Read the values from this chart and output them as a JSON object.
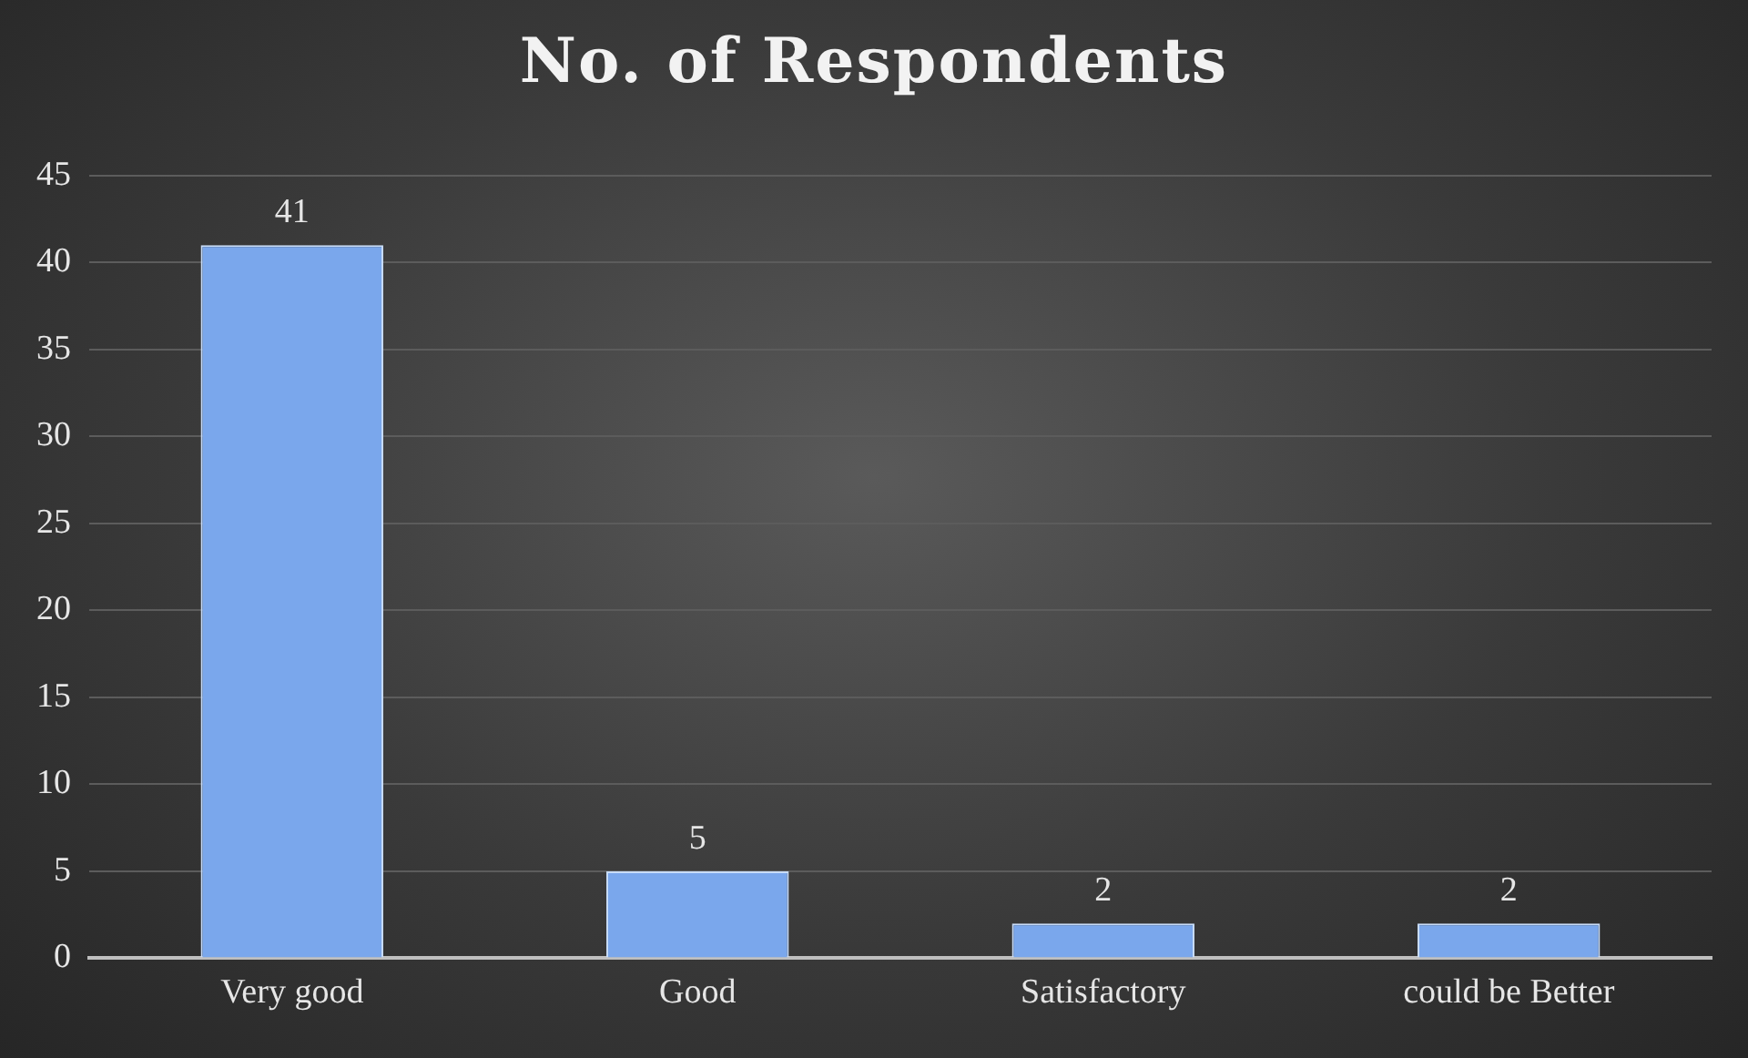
{
  "chart_data": {
    "type": "bar",
    "title": "No. of Respondents",
    "categories": [
      "Very good",
      "Good",
      "Satisfactory",
      "could be Better"
    ],
    "values": [
      41,
      5,
      2,
      2
    ],
    "color": "#7aa7ec",
    "ylim": [
      0,
      45
    ],
    "yticks": [
      0,
      5,
      10,
      15,
      20,
      25,
      30,
      35,
      40,
      45
    ],
    "grid": "y",
    "data_labels": true
  }
}
